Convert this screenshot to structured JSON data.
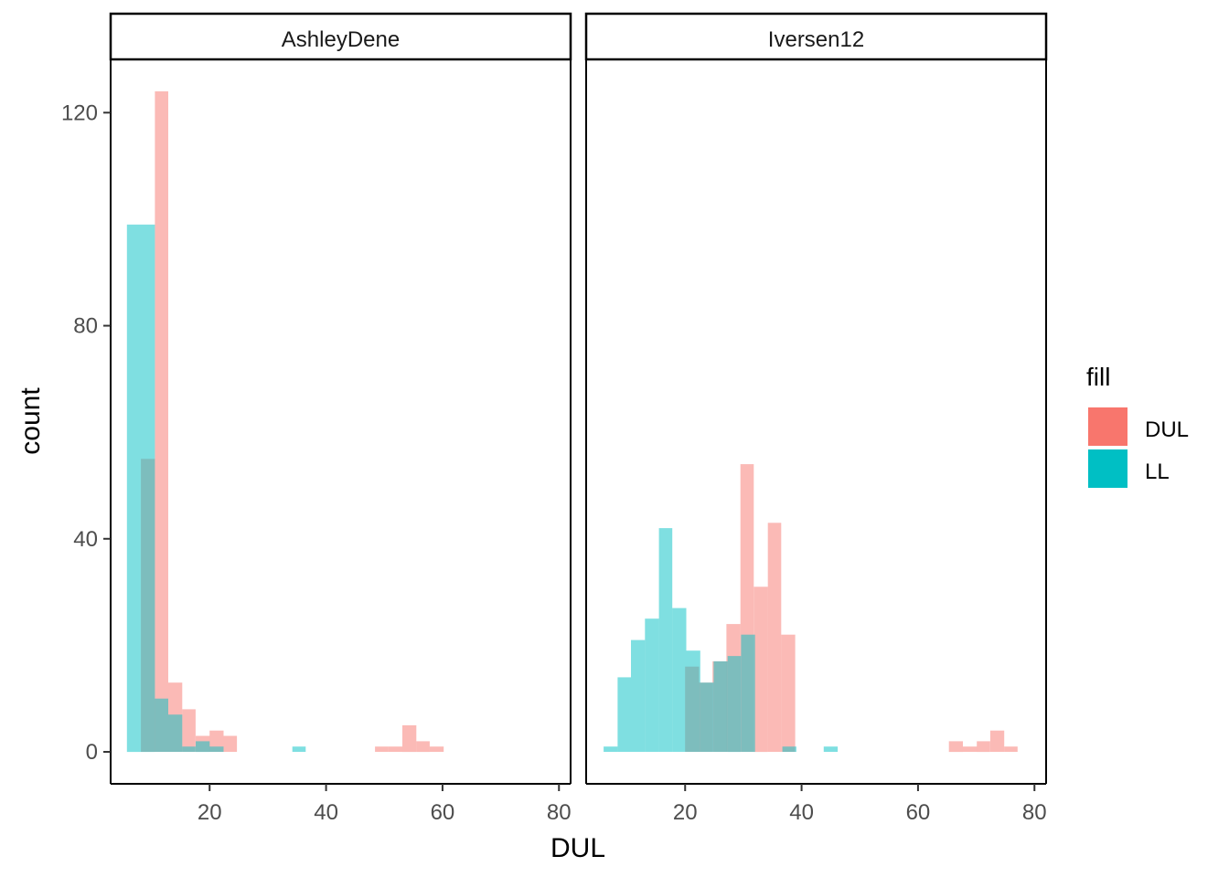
{
  "chart_data": {
    "type": "histogram",
    "xlabel": "DUL",
    "ylabel": "count",
    "xlim": [
      3,
      82
    ],
    "ylim": [
      -6,
      130
    ],
    "xticks": [
      20,
      40,
      60,
      80
    ],
    "yticks": [
      0,
      40,
      80,
      120
    ],
    "bin_width": 2.36,
    "overlay_alpha": 0.5,
    "legend": {
      "title": "fill",
      "position": "right",
      "entries": [
        {
          "label": "DUL",
          "color": "#F8766D"
        },
        {
          "label": "LL",
          "color": "#00BFC4"
        }
      ]
    },
    "panels": [
      {
        "name": "AshleyDene",
        "series": [
          {
            "name": "DUL",
            "color": "#F8766D",
            "bins": [
              {
                "x0": 8.2,
                "x1": 10.6,
                "count": 55
              },
              {
                "x0": 10.6,
                "x1": 12.9,
                "count": 124
              },
              {
                "x0": 12.9,
                "x1": 15.3,
                "count": 13
              },
              {
                "x0": 15.3,
                "x1": 17.6,
                "count": 8
              },
              {
                "x0": 17.6,
                "x1": 20.0,
                "count": 3
              },
              {
                "x0": 20.0,
                "x1": 22.4,
                "count": 4
              },
              {
                "x0": 22.4,
                "x1": 24.7,
                "count": 3
              },
              {
                "x0": 48.4,
                "x1": 50.7,
                "count": 1
              },
              {
                "x0": 50.7,
                "x1": 53.1,
                "count": 1
              },
              {
                "x0": 53.1,
                "x1": 55.5,
                "count": 5
              },
              {
                "x0": 55.5,
                "x1": 57.8,
                "count": 2
              },
              {
                "x0": 57.8,
                "x1": 60.2,
                "count": 1
              }
            ]
          },
          {
            "name": "LL",
            "color": "#00BFC4",
            "bins": [
              {
                "x0": 5.8,
                "x1": 10.6,
                "count": 99
              },
              {
                "x0": 10.6,
                "x1": 12.9,
                "count": 10
              },
              {
                "x0": 12.9,
                "x1": 15.3,
                "count": 7
              },
              {
                "x0": 15.3,
                "x1": 17.6,
                "count": 1
              },
              {
                "x0": 17.6,
                "x1": 20.0,
                "count": 2
              },
              {
                "x0": 20.0,
                "x1": 22.4,
                "count": 1
              },
              {
                "x0": 34.2,
                "x1": 36.5,
                "count": 1
              }
            ]
          }
        ]
      },
      {
        "name": "Iversen12",
        "series": [
          {
            "name": "DUL",
            "color": "#F8766D",
            "bins": [
              {
                "x0": 20.0,
                "x1": 22.4,
                "count": 16
              },
              {
                "x0": 22.4,
                "x1": 24.7,
                "count": 13
              },
              {
                "x0": 24.7,
                "x1": 27.1,
                "count": 17
              },
              {
                "x0": 27.1,
                "x1": 29.5,
                "count": 24
              },
              {
                "x0": 29.5,
                "x1": 31.8,
                "count": 54
              },
              {
                "x0": 31.8,
                "x1": 34.2,
                "count": 31
              },
              {
                "x0": 34.2,
                "x1": 36.5,
                "count": 43
              },
              {
                "x0": 36.5,
                "x1": 38.9,
                "count": 22
              },
              {
                "x0": 65.3,
                "x1": 67.7,
                "count": 2
              },
              {
                "x0": 67.7,
                "x1": 70.1,
                "count": 1
              },
              {
                "x0": 70.1,
                "x1": 72.4,
                "count": 2
              },
              {
                "x0": 72.4,
                "x1": 74.8,
                "count": 4
              },
              {
                "x0": 74.8,
                "x1": 77.1,
                "count": 1
              }
            ]
          },
          {
            "name": "LL",
            "color": "#00BFC4",
            "bins": [
              {
                "x0": 6.0,
                "x1": 8.4,
                "count": 1
              },
              {
                "x0": 8.4,
                "x1": 10.7,
                "count": 14
              },
              {
                "x0": 10.7,
                "x1": 13.1,
                "count": 21
              },
              {
                "x0": 13.1,
                "x1": 15.5,
                "count": 25
              },
              {
                "x0": 15.5,
                "x1": 17.8,
                "count": 42
              },
              {
                "x0": 17.8,
                "x1": 20.2,
                "count": 27
              },
              {
                "x0": 20.2,
                "x1": 22.6,
                "count": 19
              },
              {
                "x0": 22.6,
                "x1": 24.9,
                "count": 13
              },
              {
                "x0": 24.9,
                "x1": 27.3,
                "count": 17
              },
              {
                "x0": 27.3,
                "x1": 29.6,
                "count": 18
              },
              {
                "x0": 29.6,
                "x1": 32.0,
                "count": 22
              },
              {
                "x0": 36.7,
                "x1": 39.1,
                "count": 1
              },
              {
                "x0": 43.8,
                "x1": 46.2,
                "count": 1
              }
            ]
          }
        ]
      }
    ]
  }
}
